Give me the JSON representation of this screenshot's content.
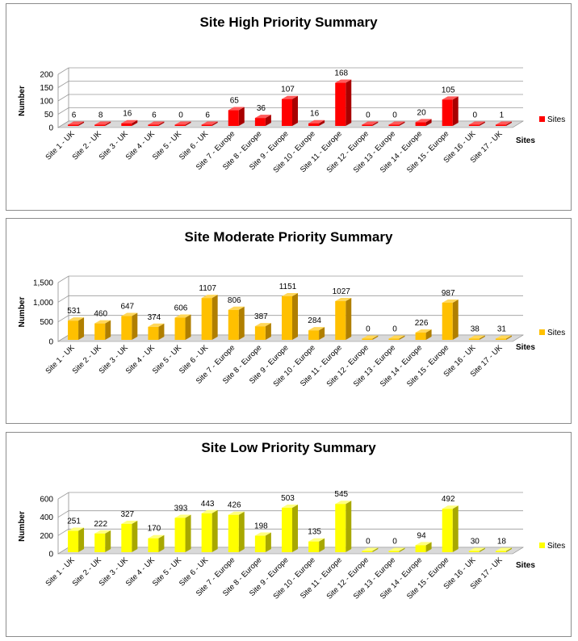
{
  "chart_data": [
    {
      "type": "bar",
      "title": "Site High Priority Summary",
      "ylabel": "Number",
      "xlabel": "Sites",
      "ylim": [
        0,
        200
      ],
      "yticks": [
        0,
        50,
        100,
        150,
        200
      ],
      "yticklabels": [
        "0",
        "50",
        "100",
        "150",
        "200"
      ],
      "categories": [
        "Site 1 - UK",
        "Site 2 - UK",
        "Site 3 - UK",
        "Site 4 - UK",
        "Site 5 - UK",
        "Site 6 - UK",
        "Site 7 - Europe",
        "Site 8 - Europe",
        "Site 9 - Europe",
        "Site 10 - Europe",
        "Site 11 - Europe",
        "Site 12 - Europe",
        "Site 13 - Europe",
        "Site 14 - Europe",
        "Site 15 - Europe",
        "Site 16 - UK",
        "Site 17 - UK"
      ],
      "series": [
        {
          "name": "Sites",
          "values": [
            6,
            8,
            16,
            6,
            0,
            6,
            65,
            36,
            107,
            16,
            168,
            0,
            0,
            20,
            105,
            0,
            1
          ]
        }
      ],
      "legend": "right",
      "grid": true,
      "colors": {
        "front": "#ff0000",
        "side": "#a80000",
        "top": "#ff5a5a"
      }
    },
    {
      "type": "bar",
      "title": "Site Moderate Priority Summary",
      "ylabel": "Number",
      "xlabel": "Sites",
      "ylim": [
        0,
        1500
      ],
      "yticks": [
        0,
        500,
        1000,
        1500
      ],
      "yticklabels": [
        "0",
        "500",
        "1,000",
        "1,500"
      ],
      "categories": [
        "Site 1 - UK",
        "Site 2 - UK",
        "Site 3 - UK",
        "Site 4 - UK",
        "Site 5 - UK",
        "Site 6 - UK",
        "Site 7 - Europe",
        "Site 8 - Europe",
        "Site 9 - Europe",
        "Site 10 - Europe",
        "Site 11 - Europe",
        "Site 12 - Europe",
        "Site 13 - Europe",
        "Site 14 - Europe",
        "Site 15 - Europe",
        "Site 16 - UK",
        "Site 17 - UK"
      ],
      "series": [
        {
          "name": "Sites",
          "values": [
            531,
            460,
            647,
            374,
            606,
            1107,
            806,
            387,
            1151,
            284,
            1027,
            0,
            0,
            226,
            987,
            38,
            31
          ]
        }
      ],
      "legend": "right",
      "grid": true,
      "colors": {
        "front": "#ffc000",
        "side": "#b07f00",
        "top": "#ffd75a"
      }
    },
    {
      "type": "bar",
      "title": "Site Low Priority Summary",
      "ylabel": "Number",
      "xlabel": "Sites",
      "ylim": [
        0,
        600
      ],
      "yticks": [
        0,
        200,
        400,
        600
      ],
      "yticklabels": [
        "0",
        "200",
        "400",
        "600"
      ],
      "categories": [
        "Site 1 - UK",
        "Site 2 - UK",
        "Site 3 - UK",
        "Site 4 - UK",
        "Site 5 - UK",
        "Site 6 - UK",
        "Site 7 - Europe",
        "Site 8 - Europe",
        "Site 9 - Europe",
        "Site 10 - Europe",
        "Site 11 - Europe",
        "Site 12 - Europe",
        "Site 13 - Europe",
        "Site 14 - Europe",
        "Site 15 - Europe",
        "Site 16 - UK",
        "Site 17 - UK"
      ],
      "series": [
        {
          "name": "Sites",
          "values": [
            251,
            222,
            327,
            170,
            393,
            443,
            426,
            198,
            503,
            135,
            545,
            0,
            0,
            94,
            492,
            30,
            18
          ]
        }
      ],
      "legend": "right",
      "grid": true,
      "colors": {
        "front": "#ffff00",
        "side": "#a8a800",
        "top": "#ffff80"
      }
    }
  ]
}
